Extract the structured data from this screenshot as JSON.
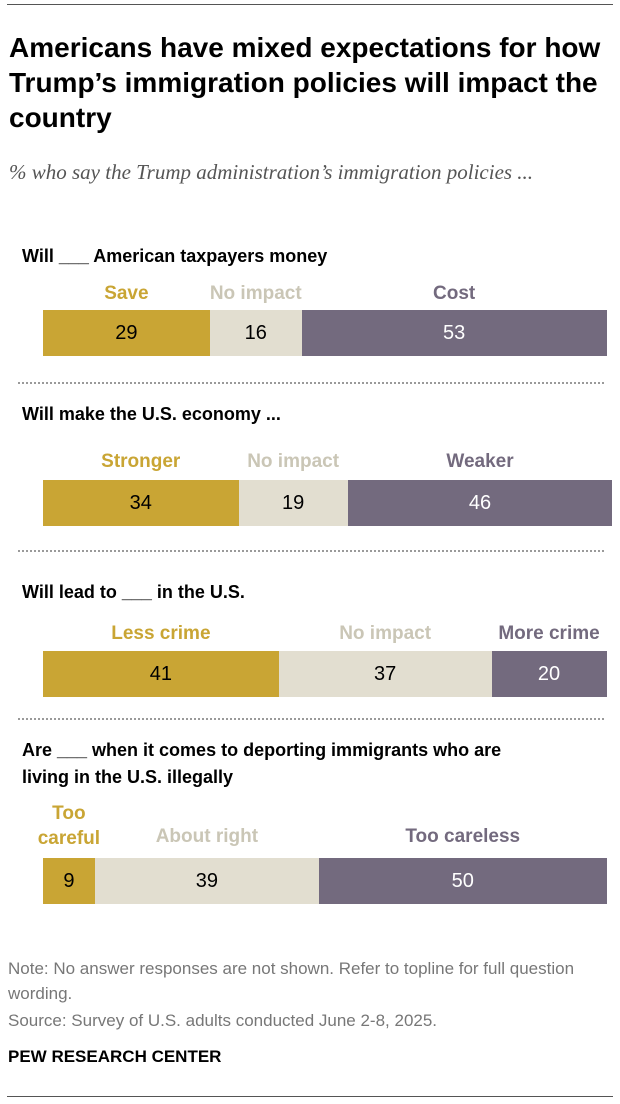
{
  "title": "Americans have mixed expectations for how Trump’s immigration policies will impact the country",
  "subtitle": "% who say the Trump administration’s immigration policies ...",
  "colors": {
    "first": "#c9a534",
    "middle": "#e2ded0",
    "last": "#736a7e"
  },
  "label_colors": {
    "first": "#c9a534",
    "middle": "#cac6b6",
    "last": "#736a7e"
  },
  "chart_data": [
    {
      "type": "bar",
      "stacked": true,
      "title": "Will ___ American taxpayers money",
      "categories": [
        "Save",
        "No impact",
        "Cost"
      ],
      "values": [
        29,
        16,
        53
      ]
    },
    {
      "type": "bar",
      "stacked": true,
      "title": "Will make the U.S. economy ...",
      "categories": [
        "Stronger",
        "No impact",
        "Weaker"
      ],
      "values": [
        34,
        19,
        46
      ]
    },
    {
      "type": "bar",
      "stacked": true,
      "title": "Will lead to ___ in the U.S.",
      "categories": [
        "Less crime",
        "No impact",
        "More crime"
      ],
      "values": [
        41,
        37,
        20
      ]
    },
    {
      "type": "bar",
      "stacked": true,
      "title": "Are ___ when it comes to deporting immigrants who are living in the U.S. illegally",
      "categories": [
        "Too careful",
        "About right",
        "Too careless"
      ],
      "values": [
        9,
        39,
        50
      ]
    }
  ],
  "note": "Note: No answer responses are not shown. Refer to topline for full question wording.",
  "source": "Source: Survey of U.S. adults conducted June 2-8, 2025.",
  "brand": "PEW RESEARCH CENTER"
}
